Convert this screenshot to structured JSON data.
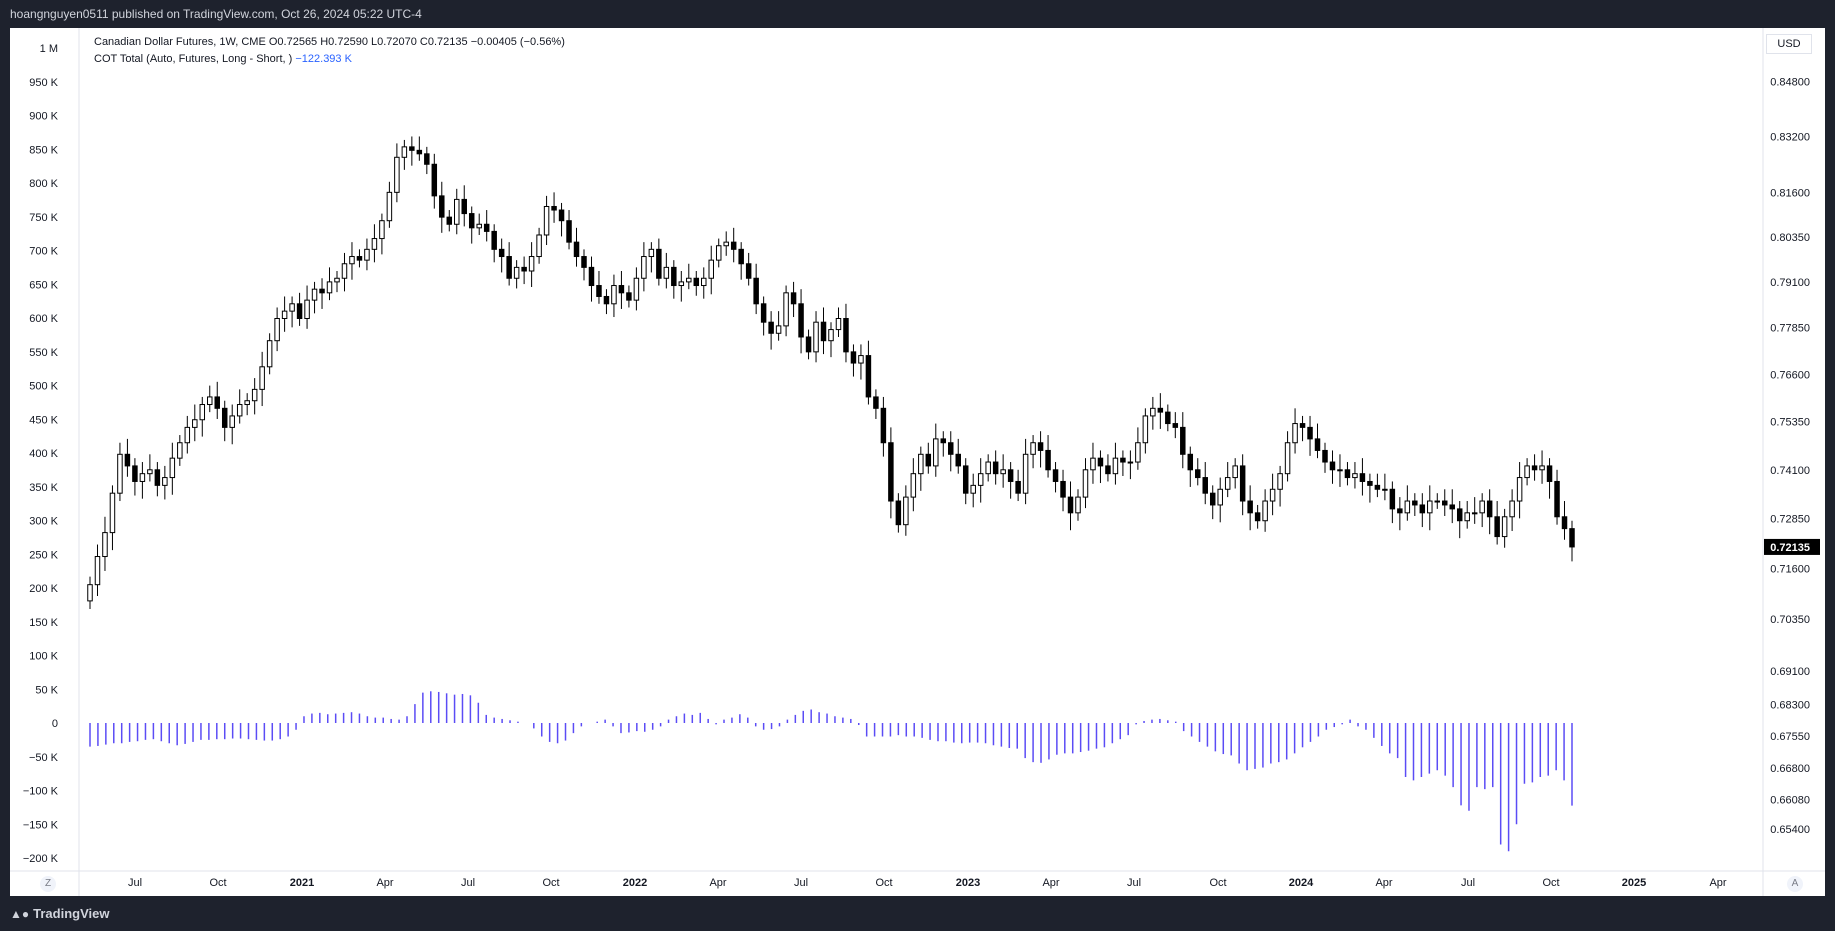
{
  "header": {
    "publisher_line": "hoangnguyen0511 published on TradingView.com, Oct 26, 2024 05:22 UTC-4"
  },
  "legend": {
    "symbol_line": "Canadian Dollar Futures, 1W, CME",
    "ohlc": "O0.72565 H0.72590 L0.72070 C0.72135 −0.00405 (−0.56%)",
    "indicator_name": "COT Total (Auto, Futures, Long - Short, )",
    "indicator_value": "−122.393 K"
  },
  "currency_label": "USD",
  "last_price_label": "0.72135",
  "bottom": {
    "brand": "TradingView",
    "z_btn": "Z",
    "a_btn": "A"
  },
  "colors": {
    "background": "#1e222d",
    "chart_bg": "#ffffff",
    "candle": "#000000",
    "cot_bar": "#5b4cf5",
    "text": "#131722"
  },
  "chart_data": [
    {
      "type": "candlestick",
      "title": "Canadian Dollar Futures, 1W, CME",
      "x_ticks": [
        "Jul",
        "Oct",
        "2021",
        "Apr",
        "Jul",
        "Oct",
        "2022",
        "Apr",
        "Jul",
        "Oct",
        "2023",
        "Apr",
        "Jul",
        "Oct",
        "2024",
        "Apr",
        "Jul",
        "Oct",
        "2025",
        "Apr"
      ],
      "y_ticks": [
        "0.84800",
        "0.83200",
        "0.81600",
        "0.80350",
        "0.79100",
        "0.77850",
        "0.76600",
        "0.75350",
        "0.74100",
        "0.72850",
        "0.71600",
        "0.70350",
        "0.69100",
        "0.68300",
        "0.67550",
        "0.66800",
        "0.66080",
        "0.65400"
      ],
      "ylim": [
        0.652,
        0.855
      ],
      "close_series": [
        0.712,
        0.719,
        0.725,
        0.735,
        0.745,
        0.742,
        0.738,
        0.74,
        0.741,
        0.737,
        0.739,
        0.744,
        0.748,
        0.752,
        0.754,
        0.758,
        0.76,
        0.757,
        0.752,
        0.755,
        0.758,
        0.759,
        0.762,
        0.768,
        0.775,
        0.781,
        0.783,
        0.785,
        0.781,
        0.786,
        0.789,
        0.788,
        0.791,
        0.792,
        0.796,
        0.798,
        0.797,
        0.8,
        0.803,
        0.808,
        0.816,
        0.826,
        0.829,
        0.828,
        0.827,
        0.824,
        0.815,
        0.809,
        0.807,
        0.814,
        0.81,
        0.806,
        0.807,
        0.805,
        0.8,
        0.798,
        0.792,
        0.795,
        0.794,
        0.798,
        0.804,
        0.812,
        0.811,
        0.808,
        0.802,
        0.798,
        0.795,
        0.79,
        0.787,
        0.785,
        0.79,
        0.788,
        0.786,
        0.792,
        0.798,
        0.8,
        0.792,
        0.795,
        0.79,
        0.791,
        0.792,
        0.79,
        0.792,
        0.797,
        0.801,
        0.802,
        0.8,
        0.796,
        0.792,
        0.785,
        0.78,
        0.777,
        0.779,
        0.788,
        0.785,
        0.776,
        0.772,
        0.78,
        0.775,
        0.778,
        0.781,
        0.772,
        0.769,
        0.771,
        0.76,
        0.757,
        0.748,
        0.733,
        0.727,
        0.734,
        0.74,
        0.745,
        0.742,
        0.749,
        0.748,
        0.745,
        0.742,
        0.735,
        0.737,
        0.74,
        0.743,
        0.74,
        0.741,
        0.738,
        0.735,
        0.745,
        0.748,
        0.746,
        0.741,
        0.738,
        0.734,
        0.73,
        0.734,
        0.741,
        0.744,
        0.742,
        0.74,
        0.744,
        0.743,
        0.743,
        0.748,
        0.755,
        0.757,
        0.756,
        0.753,
        0.752,
        0.745,
        0.741,
        0.739,
        0.735,
        0.732,
        0.736,
        0.739,
        0.742,
        0.733,
        0.73,
        0.728,
        0.733,
        0.736,
        0.74,
        0.748,
        0.753,
        0.752,
        0.749,
        0.746,
        0.743,
        0.741,
        0.741,
        0.739,
        0.74,
        0.738,
        0.737,
        0.736,
        0.736,
        0.731,
        0.73,
        0.733,
        0.732,
        0.73,
        0.733,
        0.733,
        0.732,
        0.731,
        0.728,
        0.73,
        0.73,
        0.733,
        0.729,
        0.724,
        0.729,
        0.733,
        0.739,
        0.742,
        0.741,
        0.742,
        0.738,
        0.729,
        0.726,
        0.7214
      ]
    },
    {
      "type": "bar",
      "title": "COT Total (Auto, Futures, Long - Short, )",
      "y_ticks": [
        "1 M",
        "950 K",
        "900 K",
        "850 K",
        "800 K",
        "750 K",
        "700 K",
        "650 K",
        "600 K",
        "550 K",
        "500 K",
        "450 K",
        "400 K",
        "350 K",
        "300 K",
        "250 K",
        "200 K",
        "150 K",
        "100 K",
        "50 K",
        "0",
        "−50 K",
        "−100 K",
        "−150 K",
        "−200 K"
      ],
      "ylim": [
        -200,
        1000
      ],
      "unit": "K",
      "values": [
        -35,
        -34,
        -32,
        -30,
        -30,
        -28,
        -27,
        -25,
        -24,
        -27,
        -30,
        -33,
        -31,
        -28,
        -25,
        -25,
        -24,
        -24,
        -23,
        -23,
        -24,
        -25,
        -26,
        -26,
        -24,
        -20,
        -10,
        10,
        14,
        15,
        13,
        14,
        15,
        16,
        14,
        10,
        8,
        8,
        6,
        5,
        10,
        28,
        45,
        47,
        46,
        44,
        42,
        43,
        41,
        30,
        12,
        8,
        6,
        4,
        2,
        0,
        -8,
        -20,
        -28,
        -30,
        -26,
        -15,
        -5,
        0,
        2,
        5,
        -5,
        -15,
        -14,
        -12,
        -13,
        -10,
        -5,
        5,
        10,
        14,
        12,
        15,
        6,
        -2,
        5,
        8,
        13,
        8,
        -5,
        -10,
        -9,
        -5,
        5,
        12,
        18,
        20,
        16,
        14,
        10,
        8,
        6,
        -3,
        -20,
        -20,
        -20,
        -20,
        -18,
        -20,
        -20,
        -22,
        -25,
        -27,
        -27,
        -29,
        -30,
        -29,
        -29,
        -30,
        -33,
        -35,
        -37,
        -38,
        -52,
        -58,
        -59,
        -54,
        -47,
        -45,
        -45,
        -43,
        -41,
        -38,
        -36,
        -30,
        -24,
        -18,
        -2,
        3,
        5,
        6,
        4,
        2,
        -12,
        -20,
        -28,
        -35,
        -42,
        -46,
        -48,
        -60,
        -70,
        -68,
        -66,
        -60,
        -58,
        -54,
        -45,
        -36,
        -28,
        -20,
        -10,
        -6,
        -2,
        5,
        -5,
        -10,
        -22,
        -34,
        -45,
        -52,
        -80,
        -85,
        -80,
        -75,
        -70,
        -78,
        -95,
        -122,
        -130,
        -95,
        -98,
        -95,
        -180,
        -190,
        -150,
        -90,
        -88,
        -80,
        -78,
        -70,
        -85,
        -122.393
      ]
    }
  ]
}
